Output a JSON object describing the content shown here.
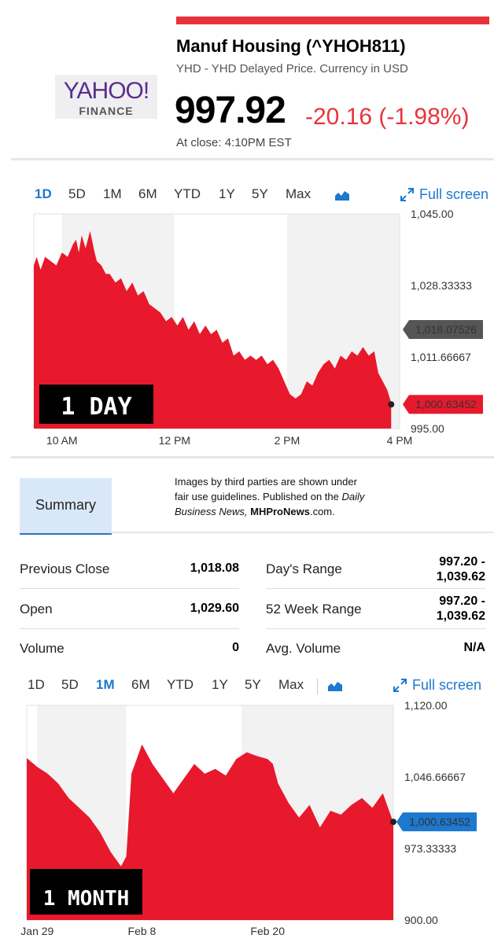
{
  "header": {
    "logo_text": "YAHOO!",
    "logo_sub": "FINANCE",
    "name": "Manuf Housing (^YHOH811)",
    "source": "YHD - YHD Delayed Price. Currency in USD",
    "price": "997.92",
    "change": "-20.16 (-1.98%)",
    "close_time": "At close: 4:10PM EST"
  },
  "tabs_top": {
    "items": [
      "1D",
      "5D",
      "1M",
      "6M",
      "YTD",
      "1Y",
      "5Y",
      "Max"
    ],
    "active": "1D",
    "full_screen": "Full screen"
  },
  "tabs_bottom": {
    "items": [
      "1D",
      "5D",
      "1M",
      "6M",
      "YTD",
      "1Y",
      "5Y",
      "Max"
    ],
    "active": "1M",
    "full_screen": "Full screen"
  },
  "summary": {
    "tab_label": "Summary",
    "note_line1": "Images by third parties are shown under",
    "note_line2": "fair use guidelines.  Published on the",
    "note_italic1": "Daily",
    "note_italic2": "Business News,",
    "note_bold": "MHProNews",
    "note_end": ".com.",
    "rows": [
      {
        "label": "Previous Close",
        "value": "1,018.08",
        "label2": "Day's Range",
        "value2a": "997.20 -",
        "value2b": "1,039.62"
      },
      {
        "label": "Open",
        "value": "1,029.60",
        "label2": "52 Week Range",
        "value2a": "997.20 -",
        "value2b": "1,039.62"
      },
      {
        "label": "Volume",
        "value": "0",
        "label2": "Avg. Volume",
        "value2": "N/A"
      }
    ]
  },
  "colors": {
    "accent": "#1d78d0",
    "negative": "#e8333c",
    "area_fill": "#e8192c",
    "band": "#f2f2f2"
  },
  "chart_data": [
    {
      "type": "area",
      "title": "",
      "overlay_label": "1 DAY",
      "ylim": [
        995.0,
        1045.0
      ],
      "y_ticks": [
        "1,045.00",
        "1,028.33333",
        "1,011.66667",
        "995.00"
      ],
      "x_ticks": [
        "10 AM",
        "12 PM",
        "2 PM",
        "4 PM"
      ],
      "x_tick_hours": [
        10,
        12,
        14,
        16
      ],
      "xlim": [
        9.5,
        16.0
      ],
      "prev_close_label": "1,018.07526",
      "prev_close": 1018.07526,
      "last_label": "1,000.63452",
      "last": 1000.63452,
      "x_hours": [
        9.5,
        9.55,
        9.62,
        9.7,
        9.8,
        9.9,
        10.0,
        10.1,
        10.2,
        10.25,
        10.3,
        10.35,
        10.42,
        10.5,
        10.58,
        10.62,
        10.7,
        10.78,
        10.85,
        10.95,
        11.05,
        11.15,
        11.25,
        11.35,
        11.45,
        11.55,
        11.65,
        11.75,
        11.85,
        11.95,
        12.05,
        12.15,
        12.25,
        12.35,
        12.45,
        12.55,
        12.65,
        12.75,
        12.85,
        12.95,
        13.05,
        13.15,
        13.25,
        13.35,
        13.45,
        13.55,
        13.65,
        13.75,
        13.85,
        13.95,
        14.05,
        14.15,
        14.25,
        14.35,
        14.45,
        14.55,
        14.65,
        14.75,
        14.85,
        14.95,
        15.05,
        15.15,
        15.25,
        15.35,
        15.45,
        15.55,
        15.62,
        15.7,
        15.78,
        15.85
      ],
      "values": [
        1033,
        1035,
        1032,
        1035,
        1034,
        1033,
        1036,
        1035,
        1038,
        1039,
        1036,
        1040,
        1037,
        1041,
        1036,
        1034,
        1033,
        1031,
        1031,
        1029,
        1030,
        1027,
        1029,
        1026,
        1027,
        1024,
        1023,
        1022,
        1020,
        1021,
        1019,
        1021,
        1018,
        1020,
        1017,
        1019,
        1017,
        1018,
        1015,
        1016,
        1012,
        1013,
        1011,
        1012,
        1011,
        1012,
        1010,
        1011,
        1009,
        1006,
        1003,
        1002,
        1003,
        1006,
        1005,
        1008,
        1010,
        1011,
        1009,
        1012,
        1011,
        1013,
        1012,
        1014,
        1012,
        1013,
        1008,
        1006,
        1004,
        1001
      ]
    },
    {
      "type": "area",
      "title": "",
      "overlay_label": "1 MONTH",
      "ylim": [
        900.0,
        1120.0
      ],
      "y_ticks": [
        "1,120.00",
        "1,046.66667",
        "973.33333",
        "900.00"
      ],
      "x_ticks": [
        "Jan 29",
        "Feb 8",
        "Feb 20"
      ],
      "x_tick_days": [
        0,
        10,
        22
      ],
      "xlim": [
        -1,
        34
      ],
      "last_label": "1,000.63452",
      "last": 1000.63452,
      "x_days": [
        -1,
        0,
        1,
        2,
        3,
        4,
        5,
        6,
        7,
        8,
        8.5,
        9,
        10,
        11,
        12,
        13,
        14,
        15,
        16,
        17,
        18,
        19,
        20,
        21,
        22,
        22.5,
        23,
        24,
        25,
        26,
        27,
        28,
        29,
        30,
        31,
        32,
        33,
        34
      ],
      "values": [
        1066,
        1057,
        1050,
        1040,
        1025,
        1015,
        1005,
        990,
        970,
        955,
        965,
        1050,
        1080,
        1060,
        1045,
        1030,
        1045,
        1060,
        1050,
        1055,
        1048,
        1065,
        1072,
        1068,
        1065,
        1060,
        1040,
        1020,
        1005,
        1018,
        995,
        1012,
        1008,
        1018,
        1025,
        1015,
        1030,
        1000
      ]
    }
  ]
}
